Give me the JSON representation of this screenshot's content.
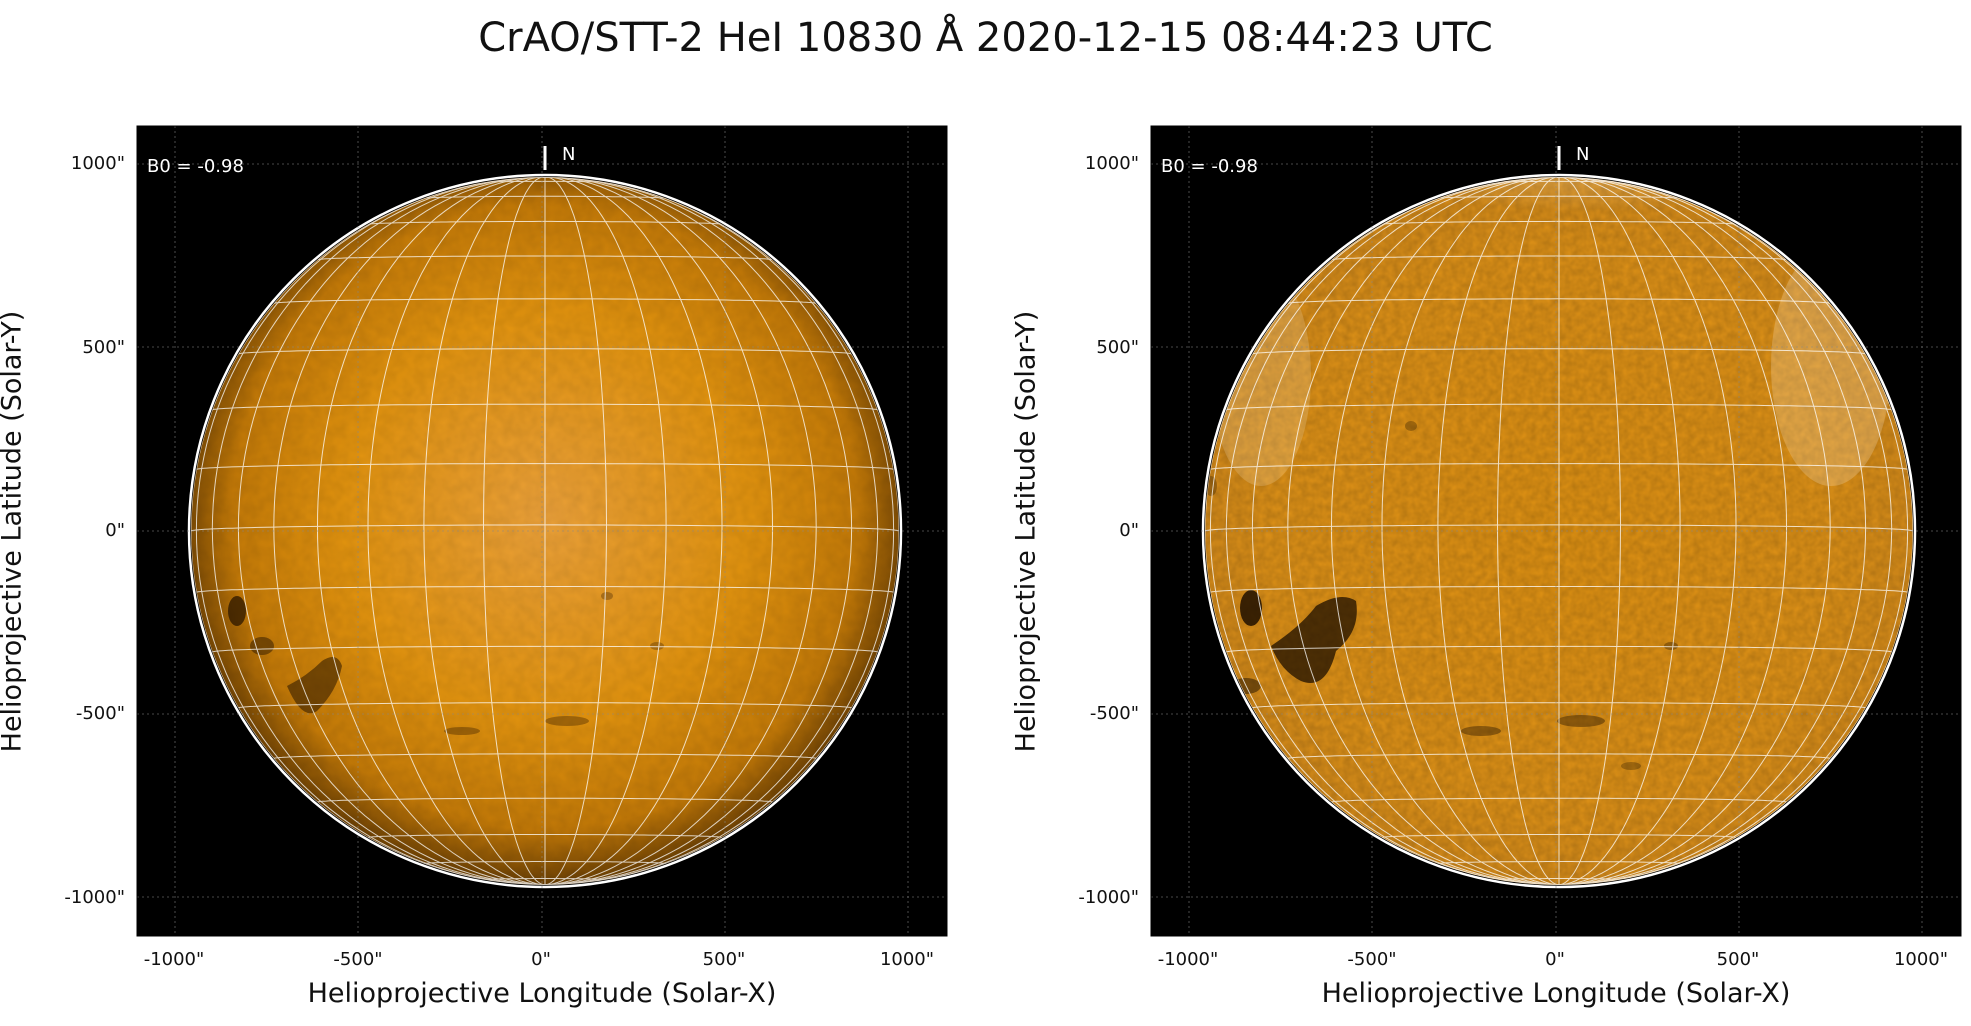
{
  "title": "CrAO/STT-2 HeI 10830 Å 2020-12-15 08:44:23 UTC",
  "panels": [
    {
      "id": "intensity",
      "b0_label": "B0 = -0.98",
      "north_label": "N",
      "xlabel": "Helioprojective Longitude (Solar-X)",
      "ylabel": "Helioprojective Latitude (Solar-Y)",
      "xticks": [
        "-1000\"",
        "-500\"",
        "0\"",
        "500\"",
        "1000\""
      ],
      "yticks": [
        "1000\"",
        "500\"",
        "0\"",
        "-500\"",
        "-1000\""
      ]
    },
    {
      "id": "contrast",
      "b0_label": "B0 = -0.98",
      "north_label": "N",
      "xlabel": "Helioprojective Longitude (Solar-X)",
      "ylabel": "Helioprojective Latitude (Solar-Y)",
      "xticks": [
        "-1000\"",
        "-500\"",
        "0\"",
        "500\"",
        "1000\""
      ],
      "yticks": [
        "1000\"",
        "500\"",
        "0\"",
        "-500\"",
        "-1000\""
      ]
    }
  ],
  "colors": {
    "sun_base": "#e0900c",
    "sky": "#000000",
    "grid": "#ffffff"
  }
}
